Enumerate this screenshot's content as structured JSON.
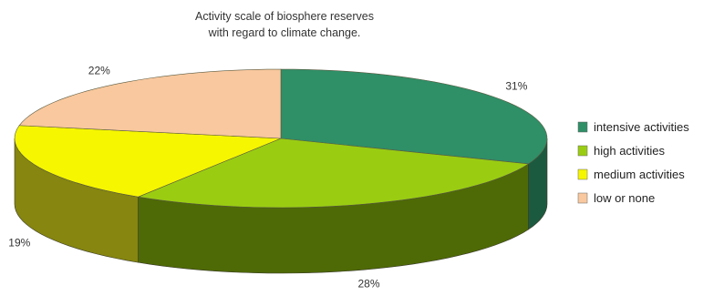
{
  "chart_data": {
    "type": "pie",
    "style": "3d",
    "title_lines": [
      "Activity scale of biosphere reserves",
      "with regard to climate change."
    ],
    "slices": [
      {
        "label": "intensive activities",
        "value": 31,
        "value_label": "31%",
        "color": "#2f8f67",
        "side_color": "#1c5a40"
      },
      {
        "label": "high activities",
        "value": 28,
        "value_label": "28%",
        "color": "#9acd12",
        "side_color": "#4e6a06"
      },
      {
        "label": "medium activities",
        "value": 19,
        "value_label": "19%",
        "color": "#f6f600",
        "side_color": "#868610"
      },
      {
        "label": "low or none",
        "value": 22,
        "value_label": "22%",
        "color": "#f9c89e",
        "side_color": "#b38960"
      }
    ],
    "legend_position": "right"
  }
}
